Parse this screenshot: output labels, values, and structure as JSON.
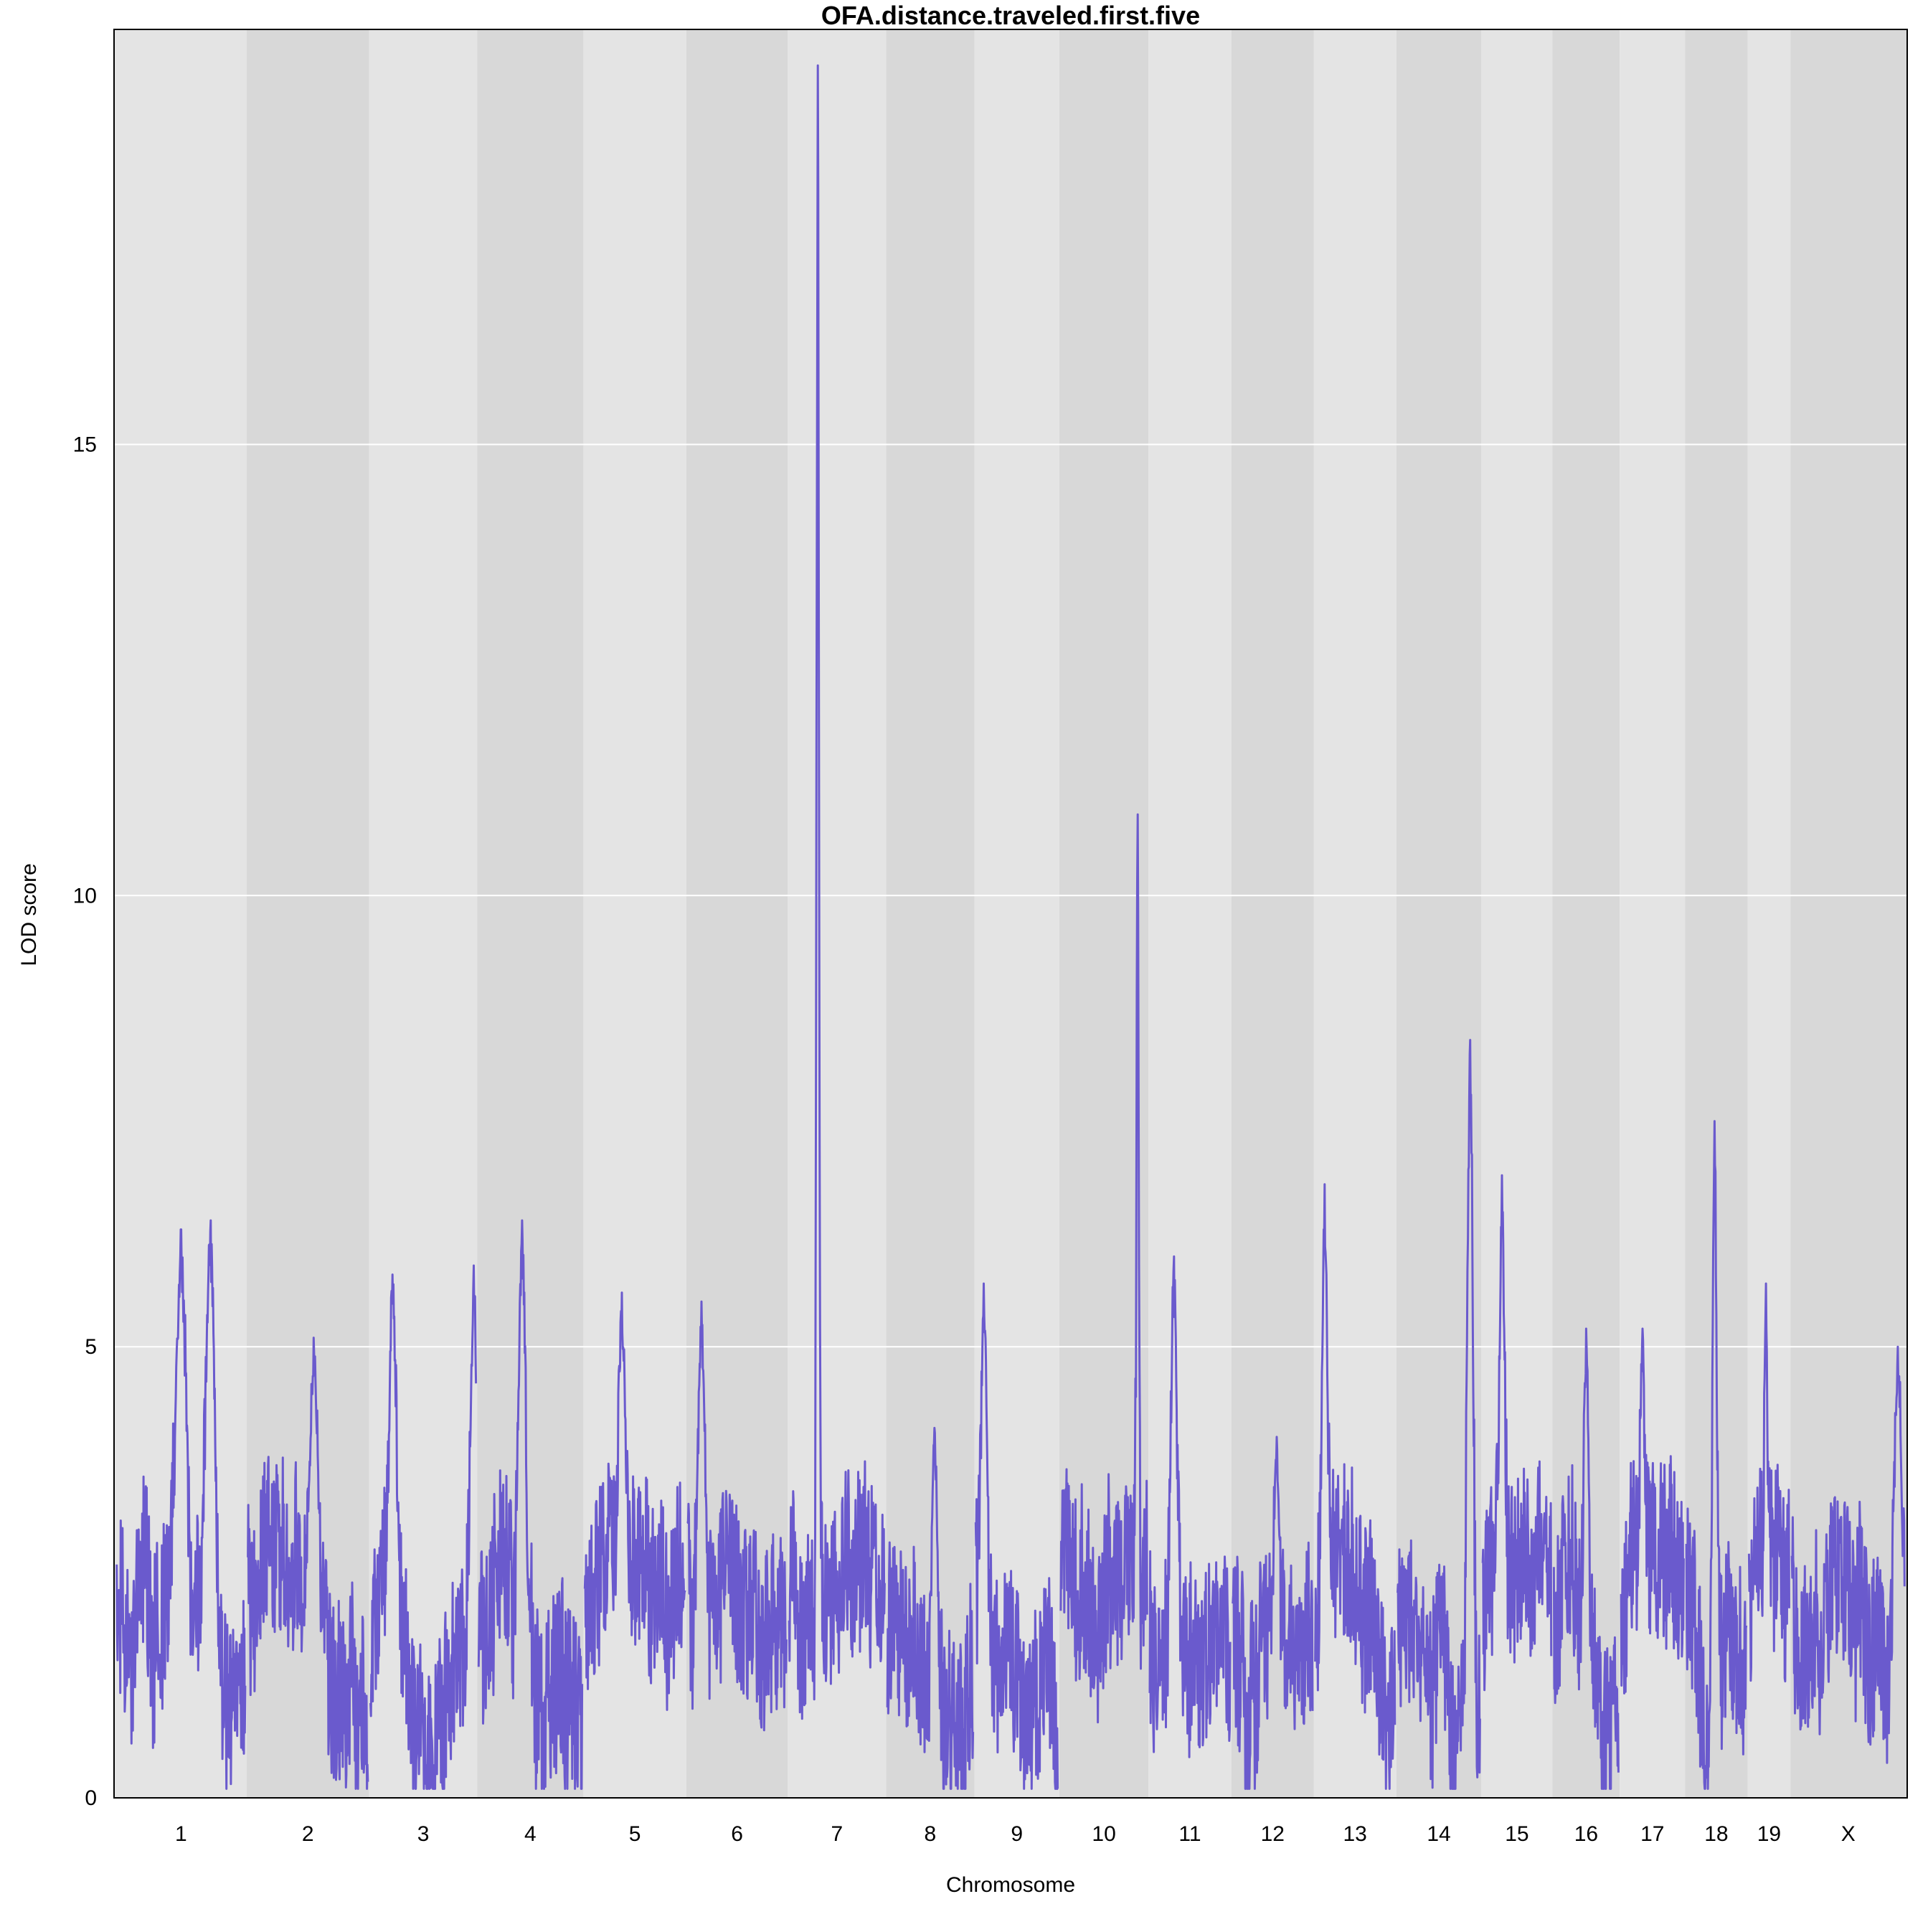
{
  "chart_data": {
    "type": "line",
    "title": "OFA.distance.traveled.first.five",
    "xlabel": "Chromosome",
    "ylabel": "LOD score",
    "ylim": [
      0,
      19.6
    ],
    "yticks": [
      0,
      5,
      10,
      15
    ],
    "grid": true,
    "legend": "none",
    "colors": {
      "line": "#6a5acd",
      "band_light": "#e4e4e4",
      "band_dark": "#d8d8d8",
      "gridline": "#ffffff",
      "frame": "#000000"
    },
    "chromosomes": [
      {
        "label": "1",
        "length": 195,
        "peaks": [
          {
            "pos": 0.5,
            "lod": 6.3
          },
          {
            "pos": 0.73,
            "lod": 6.4
          }
        ]
      },
      {
        "label": "2",
        "length": 182,
        "peaks": [
          {
            "pos": 0.55,
            "lod": 5.1
          }
        ]
      },
      {
        "label": "3",
        "length": 160,
        "peaks": [
          {
            "pos": 0.21,
            "lod": 5.8
          },
          {
            "pos": 0.98,
            "lod": 5.9
          }
        ]
      },
      {
        "label": "4",
        "length": 157,
        "peaks": [
          {
            "pos": 0.42,
            "lod": 6.4
          }
        ]
      },
      {
        "label": "5",
        "length": 152,
        "peaks": [
          {
            "pos": 0.37,
            "lod": 5.6
          }
        ]
      },
      {
        "label": "6",
        "length": 150,
        "peaks": [
          {
            "pos": 0.14,
            "lod": 5.5
          }
        ]
      },
      {
        "label": "7",
        "length": 145,
        "peaks": [
          {
            "pos": 0.3,
            "lod": 19.2
          }
        ]
      },
      {
        "label": "8",
        "length": 130,
        "peaks": [
          {
            "pos": 0.55,
            "lod": 4.1
          }
        ]
      },
      {
        "label": "9",
        "length": 125,
        "peaks": [
          {
            "pos": 0.1,
            "lod": 5.7
          }
        ]
      },
      {
        "label": "10",
        "length": 131,
        "peaks": [
          {
            "pos": 0.89,
            "lod": 10.9
          }
        ]
      },
      {
        "label": "11",
        "length": 122,
        "peaks": [
          {
            "pos": 0.3,
            "lod": 6.0
          }
        ]
      },
      {
        "label": "12",
        "length": 121,
        "peaks": [
          {
            "pos": 0.55,
            "lod": 4.0
          }
        ]
      },
      {
        "label": "13",
        "length": 121,
        "peaks": [
          {
            "pos": 0.12,
            "lod": 6.8
          }
        ]
      },
      {
        "label": "14",
        "length": 125,
        "peaks": [
          {
            "pos": 0.88,
            "lod": 8.4
          }
        ]
      },
      {
        "label": "15",
        "length": 104,
        "peaks": [
          {
            "pos": 0.28,
            "lod": 6.9
          }
        ]
      },
      {
        "label": "16",
        "length": 98,
        "peaks": [
          {
            "pos": 0.5,
            "lod": 5.2
          }
        ]
      },
      {
        "label": "17",
        "length": 95,
        "peaks": [
          {
            "pos": 0.34,
            "lod": 5.2
          }
        ]
      },
      {
        "label": "18",
        "length": 91,
        "peaks": [
          {
            "pos": 0.47,
            "lod": 7.5
          }
        ]
      },
      {
        "label": "19",
        "length": 61,
        "peaks": [
          {
            "pos": 0.42,
            "lod": 5.7
          }
        ]
      },
      {
        "label": "X",
        "length": 171,
        "peaks": [
          {
            "pos": 0.94,
            "lod": 5.0
          }
        ]
      }
    ]
  }
}
